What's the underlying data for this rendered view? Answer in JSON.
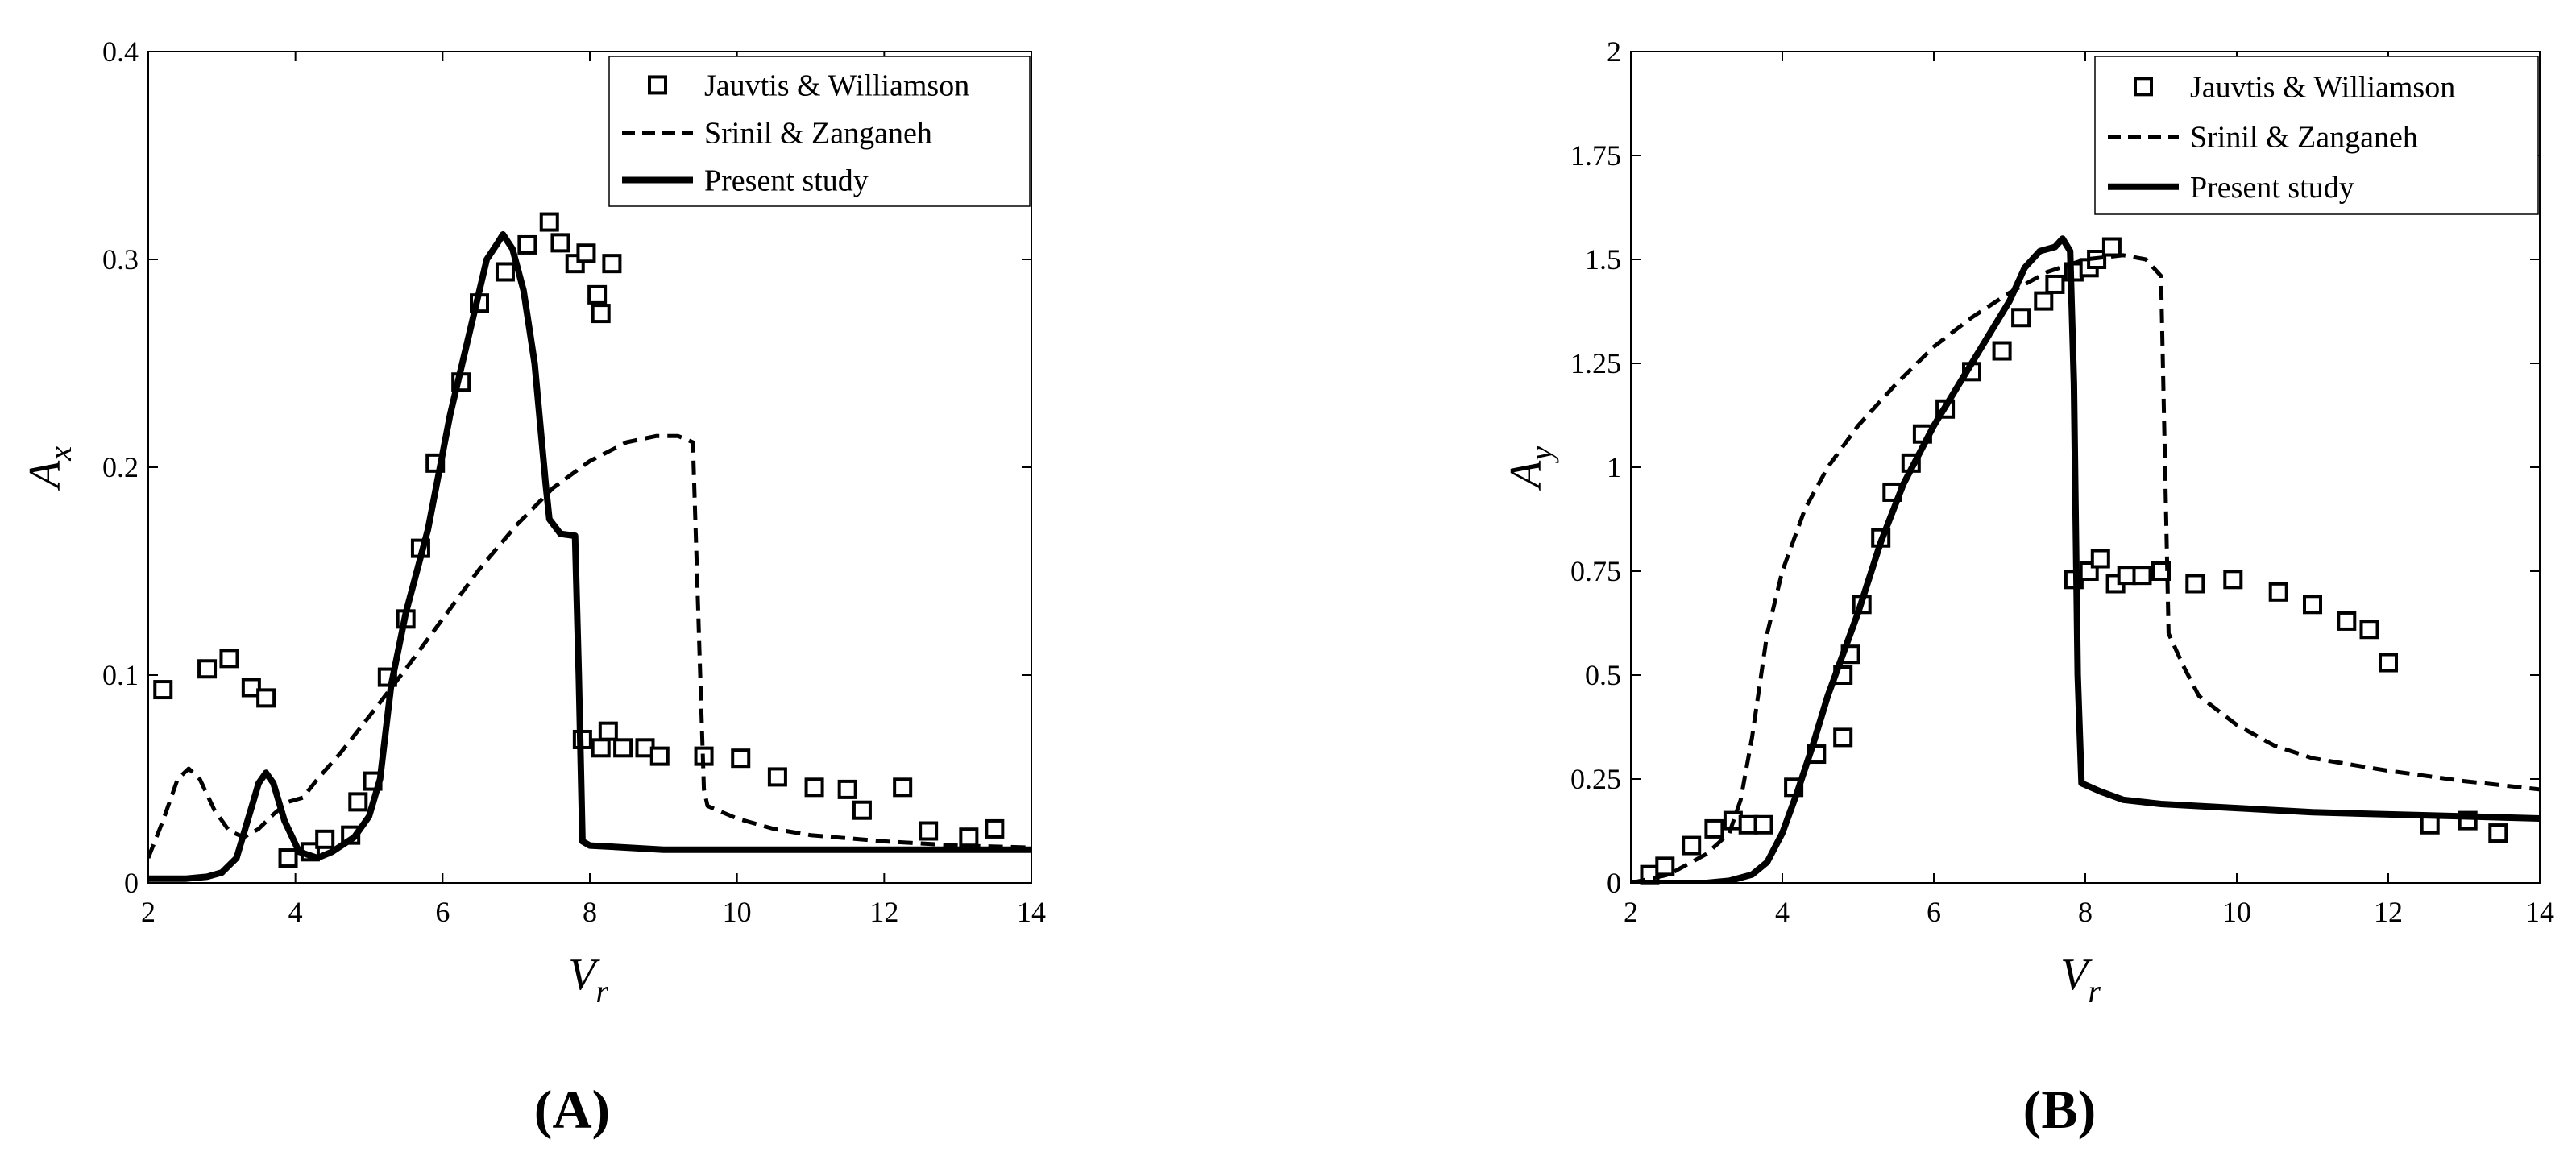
{
  "chart_data": [
    {
      "type": "line",
      "panel_label": "(A)",
      "ylabel_main": "A",
      "ylabel_sub": "x",
      "xlabel_main": "V",
      "xlabel_sub": "r",
      "xlim": [
        2,
        14
      ],
      "ylim": [
        0,
        0.4
      ],
      "xticks": [
        "2",
        "4",
        "6",
        "8",
        "10",
        "12",
        "14"
      ],
      "yticks": [
        "0",
        "0.1",
        "0.2",
        "0.3",
        "0.4"
      ],
      "legend_position": "top-right",
      "series": [
        {
          "name": "Jauvtis & Williamson",
          "style": "markers",
          "points": [
            [
              2.2,
              0.093
            ],
            [
              2.8,
              0.103
            ],
            [
              3.1,
              0.108
            ],
            [
              3.4,
              0.094
            ],
            [
              3.6,
              0.089
            ],
            [
              3.9,
              0.012
            ],
            [
              4.2,
              0.015
            ],
            [
              4.4,
              0.021
            ],
            [
              4.75,
              0.023
            ],
            [
              4.85,
              0.039
            ],
            [
              5.05,
              0.049
            ],
            [
              5.25,
              0.099
            ],
            [
              5.5,
              0.127
            ],
            [
              5.7,
              0.161
            ],
            [
              5.9,
              0.202
            ],
            [
              6.25,
              0.241
            ],
            [
              6.5,
              0.279
            ],
            [
              6.85,
              0.294
            ],
            [
              7.15,
              0.307
            ],
            [
              7.45,
              0.318
            ],
            [
              7.6,
              0.308
            ],
            [
              7.8,
              0.298
            ],
            [
              7.95,
              0.303
            ],
            [
              8.1,
              0.283
            ],
            [
              8.15,
              0.274
            ],
            [
              8.3,
              0.298
            ],
            [
              7.9,
              0.069
            ],
            [
              8.15,
              0.065
            ],
            [
              8.25,
              0.073
            ],
            [
              8.45,
              0.065
            ],
            [
              8.75,
              0.065
            ],
            [
              8.95,
              0.061
            ],
            [
              9.55,
              0.061
            ],
            [
              10.05,
              0.06
            ],
            [
              10.55,
              0.051
            ],
            [
              11.05,
              0.046
            ],
            [
              11.5,
              0.045
            ],
            [
              11.7,
              0.035
            ],
            [
              12.25,
              0.046
            ],
            [
              12.6,
              0.025
            ],
            [
              13.15,
              0.022
            ],
            [
              13.5,
              0.026
            ]
          ]
        },
        {
          "name": "Srinil & Zanganeh",
          "style": "dashed",
          "points": [
            [
              2.0,
              0.012
            ],
            [
              2.2,
              0.03
            ],
            [
              2.4,
              0.05
            ],
            [
              2.55,
              0.055
            ],
            [
              2.7,
              0.05
            ],
            [
              2.9,
              0.035
            ],
            [
              3.1,
              0.025
            ],
            [
              3.3,
              0.022
            ],
            [
              3.5,
              0.026
            ],
            [
              3.7,
              0.033
            ],
            [
              3.9,
              0.039
            ],
            [
              4.1,
              0.041
            ],
            [
              4.3,
              0.05
            ],
            [
              4.6,
              0.062
            ],
            [
              5.0,
              0.08
            ],
            [
              5.5,
              0.103
            ],
            [
              6.0,
              0.127
            ],
            [
              6.5,
              0.151
            ],
            [
              7.0,
              0.172
            ],
            [
              7.5,
              0.19
            ],
            [
              8.0,
              0.203
            ],
            [
              8.5,
              0.212
            ],
            [
              8.9,
              0.215
            ],
            [
              9.2,
              0.215
            ],
            [
              9.4,
              0.212
            ],
            [
              9.5,
              0.1
            ],
            [
              9.55,
              0.045
            ],
            [
              9.6,
              0.037
            ],
            [
              10.0,
              0.031
            ],
            [
              10.5,
              0.026
            ],
            [
              11.0,
              0.023
            ],
            [
              12.0,
              0.02
            ],
            [
              13.0,
              0.018
            ],
            [
              14.0,
              0.017
            ]
          ]
        },
        {
          "name": "Present study",
          "style": "solid",
          "points": [
            [
              2.0,
              0.002
            ],
            [
              2.5,
              0.002
            ],
            [
              2.8,
              0.003
            ],
            [
              3.0,
              0.005
            ],
            [
              3.2,
              0.012
            ],
            [
              3.35,
              0.03
            ],
            [
              3.5,
              0.048
            ],
            [
              3.6,
              0.053
            ],
            [
              3.7,
              0.048
            ],
            [
              3.85,
              0.03
            ],
            [
              4.05,
              0.015
            ],
            [
              4.3,
              0.012
            ],
            [
              4.5,
              0.015
            ],
            [
              4.8,
              0.022
            ],
            [
              5.0,
              0.032
            ],
            [
              5.15,
              0.05
            ],
            [
              5.3,
              0.095
            ],
            [
              5.5,
              0.13
            ],
            [
              5.8,
              0.17
            ],
            [
              6.1,
              0.225
            ],
            [
              6.4,
              0.27
            ],
            [
              6.6,
              0.3
            ],
            [
              6.75,
              0.308
            ],
            [
              6.82,
              0.312
            ],
            [
              6.95,
              0.305
            ],
            [
              7.1,
              0.285
            ],
            [
              7.25,
              0.25
            ],
            [
              7.4,
              0.192
            ],
            [
              7.45,
              0.175
            ],
            [
              7.6,
              0.168
            ],
            [
              7.8,
              0.167
            ],
            [
              7.85,
              0.1
            ],
            [
              7.9,
              0.02
            ],
            [
              8.0,
              0.018
            ],
            [
              8.5,
              0.017
            ],
            [
              9.0,
              0.016
            ],
            [
              10.0,
              0.016
            ],
            [
              11.0,
              0.016
            ],
            [
              12.0,
              0.016
            ],
            [
              13.0,
              0.016
            ],
            [
              14.0,
              0.016
            ]
          ]
        }
      ]
    },
    {
      "type": "line",
      "panel_label": "(B)",
      "ylabel_main": "A",
      "ylabel_sub": "y",
      "xlabel_main": "V",
      "xlabel_sub": "r",
      "xlim": [
        2,
        14
      ],
      "ylim": [
        0,
        2
      ],
      "xticks": [
        "2",
        "4",
        "6",
        "8",
        "10",
        "12",
        "14"
      ],
      "yticks": [
        "0",
        "0.25",
        "0.5",
        "0.75",
        "1",
        "1.25",
        "1.5",
        "1.75",
        "2"
      ],
      "legend_position": "top-right",
      "series": [
        {
          "name": "Jauvtis & Williamson",
          "style": "markers",
          "points": [
            [
              2.25,
              0.02
            ],
            [
              2.45,
              0.04
            ],
            [
              2.8,
              0.09
            ],
            [
              3.1,
              0.13
            ],
            [
              3.35,
              0.15
            ],
            [
              3.55,
              0.14
            ],
            [
              3.75,
              0.14
            ],
            [
              4.15,
              0.23
            ],
            [
              4.45,
              0.31
            ],
            [
              4.8,
              0.35
            ],
            [
              4.8,
              0.5
            ],
            [
              4.9,
              0.55
            ],
            [
              5.05,
              0.67
            ],
            [
              5.3,
              0.83
            ],
            [
              5.45,
              0.94
            ],
            [
              5.7,
              1.01
            ],
            [
              5.85,
              1.08
            ],
            [
              6.15,
              1.14
            ],
            [
              6.5,
              1.23
            ],
            [
              6.9,
              1.28
            ],
            [
              7.15,
              1.36
            ],
            [
              7.45,
              1.4
            ],
            [
              7.6,
              1.44
            ],
            [
              7.85,
              1.47
            ],
            [
              8.05,
              1.48
            ],
            [
              8.15,
              1.5
            ],
            [
              8.35,
              1.53
            ],
            [
              7.85,
              0.73
            ],
            [
              8.05,
              0.75
            ],
            [
              8.2,
              0.78
            ],
            [
              8.4,
              0.72
            ],
            [
              8.55,
              0.74
            ],
            [
              8.75,
              0.74
            ],
            [
              9.0,
              0.75
            ],
            [
              9.45,
              0.72
            ],
            [
              9.95,
              0.73
            ],
            [
              10.55,
              0.7
            ],
            [
              11.0,
              0.67
            ],
            [
              11.45,
              0.63
            ],
            [
              11.75,
              0.61
            ],
            [
              12.0,
              0.53
            ],
            [
              12.55,
              0.14
            ],
            [
              13.05,
              0.15
            ],
            [
              13.45,
              0.12
            ]
          ]
        },
        {
          "name": "Srinil & Zanganeh",
          "style": "dashed",
          "points": [
            [
              2.0,
              0.0
            ],
            [
              2.5,
              0.02
            ],
            [
              3.0,
              0.07
            ],
            [
              3.3,
              0.12
            ],
            [
              3.45,
              0.2
            ],
            [
              3.6,
              0.35
            ],
            [
              3.8,
              0.6
            ],
            [
              4.0,
              0.75
            ],
            [
              4.3,
              0.9
            ],
            [
              4.6,
              1.0
            ],
            [
              5.0,
              1.1
            ],
            [
              5.5,
              1.2
            ],
            [
              6.0,
              1.29
            ],
            [
              6.5,
              1.36
            ],
            [
              7.0,
              1.42
            ],
            [
              7.5,
              1.47
            ],
            [
              8.0,
              1.5
            ],
            [
              8.5,
              1.51
            ],
            [
              8.8,
              1.5
            ],
            [
              9.0,
              1.46
            ],
            [
              9.1,
              0.6
            ],
            [
              9.3,
              0.52
            ],
            [
              9.5,
              0.45
            ],
            [
              10.0,
              0.38
            ],
            [
              10.5,
              0.33
            ],
            [
              11.0,
              0.3
            ],
            [
              12.0,
              0.27
            ],
            [
              13.0,
              0.245
            ],
            [
              14.0,
              0.225
            ]
          ]
        },
        {
          "name": "Present study",
          "style": "solid",
          "points": [
            [
              2.0,
              0.0
            ],
            [
              2.5,
              0.0
            ],
            [
              3.0,
              0.0
            ],
            [
              3.3,
              0.005
            ],
            [
              3.6,
              0.02
            ],
            [
              3.8,
              0.05
            ],
            [
              4.0,
              0.12
            ],
            [
              4.2,
              0.22
            ],
            [
              4.4,
              0.33
            ],
            [
              4.6,
              0.45
            ],
            [
              4.8,
              0.55
            ],
            [
              5.0,
              0.65
            ],
            [
              5.3,
              0.82
            ],
            [
              5.6,
              0.96
            ],
            [
              6.0,
              1.1
            ],
            [
              6.5,
              1.25
            ],
            [
              7.0,
              1.4
            ],
            [
              7.2,
              1.48
            ],
            [
              7.4,
              1.52
            ],
            [
              7.6,
              1.53
            ],
            [
              7.7,
              1.55
            ],
            [
              7.8,
              1.52
            ],
            [
              7.85,
              1.2
            ],
            [
              7.9,
              0.5
            ],
            [
              7.95,
              0.24
            ],
            [
              8.2,
              0.22
            ],
            [
              8.5,
              0.2
            ],
            [
              9.0,
              0.19
            ],
            [
              10.0,
              0.18
            ],
            [
              11.0,
              0.17
            ],
            [
              12.0,
              0.165
            ],
            [
              13.0,
              0.16
            ],
            [
              14.0,
              0.155
            ]
          ]
        }
      ]
    }
  ]
}
